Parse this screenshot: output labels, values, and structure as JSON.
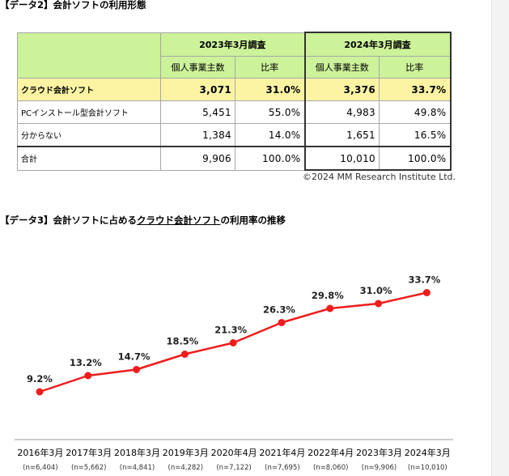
{
  "table_section": {
    "title": "【データ2】会計ソフトの利用形態",
    "header_2023": "2023年3月調査",
    "header_2024": "2024年3月調査",
    "col_count": "個人事業主数",
    "col_ratio": "比率",
    "rows": [
      {
        "label": "クラウド会計ソフト",
        "c2023": "3,071",
        "r2023": "31.0%",
        "c2024": "3,376",
        "r2024": "33.7%"
      },
      {
        "label": "PCインストール型会計ソフト",
        "c2023": "5,451",
        "r2023": "55.0%",
        "c2024": "4,983",
        "r2024": "49.8%"
      },
      {
        "label": "分からない",
        "c2023": "1,384",
        "r2023": "14.0%",
        "c2024": "1,651",
        "r2024": "16.5%"
      },
      {
        "label": "合計",
        "c2023": "9,906",
        "r2023": "100.0%",
        "c2024": "10,010",
        "r2024": "100.0%"
      }
    ],
    "copyright": "©2024 MM Research Institute Ltd.",
    "colors": {
      "header_bg": "#ccf29a",
      "highlight_bg": "#fcf4a3"
    }
  },
  "chart_section": {
    "title_before": "【データ3】会計ソフトに占める",
    "title_link": "クラウド会計ソフト",
    "title_after": "の利用率の推移"
  },
  "chart_data": {
    "type": "line",
    "categories": [
      "2016年3月",
      "2017年3月",
      "2018年3月",
      "2019年3月",
      "2020年4月",
      "2021年4月",
      "2022年4月",
      "2023年3月",
      "2024年3月"
    ],
    "sample_sizes": [
      "(n=6,404)",
      "(n=5,662)",
      "(n=4,841)",
      "(n=4,282)",
      "(n=7,122)",
      "(n=7,695)",
      "(n=8,060)",
      "(n=9,906)",
      "(n=10,010)"
    ],
    "values": [
      9.2,
      13.2,
      14.7,
      18.5,
      21.3,
      26.3,
      29.8,
      31.0,
      33.7
    ],
    "value_labels": [
      "9.2%",
      "13.2%",
      "14.7%",
      "18.5%",
      "21.3%",
      "26.3%",
      "29.8%",
      "31.0%",
      "33.7%"
    ],
    "ylim": [
      0,
      40
    ],
    "grid": false,
    "legend": "none",
    "line_color": "#ee1c1c",
    "marker_color": "#ee1c1c"
  }
}
